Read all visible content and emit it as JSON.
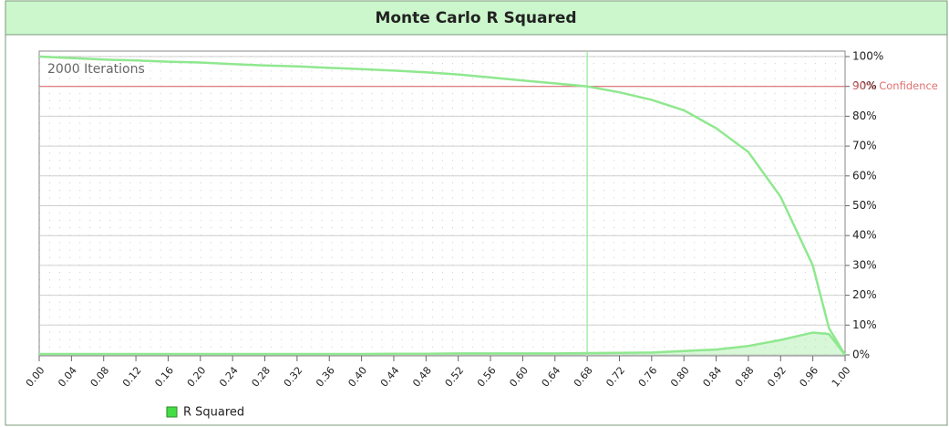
{
  "chart_data": {
    "type": "line",
    "title": "Monte Carlo R Squared",
    "annotation": "2000 Iterations",
    "x": [
      0,
      0.04,
      0.08,
      0.12,
      0.16,
      0.2,
      0.24,
      0.28,
      0.32,
      0.36,
      0.4,
      0.44,
      0.48,
      0.52,
      0.56,
      0.6,
      0.64,
      0.68,
      0.72,
      0.76,
      0.8,
      0.84,
      0.88,
      0.92,
      0.96,
      0.98,
      1.0
    ],
    "series": [
      {
        "color": "#8fe88f",
        "area": false,
        "values": [
          100,
          99.5,
          99,
          98.7,
          98.3,
          98,
          97.5,
          97,
          96.7,
          96.2,
          95.8,
          95.3,
          94.7,
          94,
          93,
          92,
          91,
          90,
          88,
          85.5,
          82,
          76,
          68,
          53,
          30,
          9,
          0
        ]
      },
      {
        "name": "R Squared",
        "color": "#8fe88f",
        "area": true,
        "values": [
          0.3,
          0.3,
          0.3,
          0.3,
          0.3,
          0.3,
          0.3,
          0.3,
          0.3,
          0.3,
          0.3,
          0.4,
          0.4,
          0.5,
          0.5,
          0.5,
          0.5,
          0.6,
          0.7,
          0.8,
          1.3,
          1.8,
          3,
          5,
          7.5,
          7,
          0
        ]
      }
    ],
    "xlim": [
      0,
      1
    ],
    "xticks": [
      {
        "value": 0,
        "label": "0.00"
      },
      {
        "value": 0.04,
        "label": "0.04"
      },
      {
        "value": 0.08,
        "label": "0.08"
      },
      {
        "value": 0.12,
        "label": "0.12"
      },
      {
        "value": 0.16,
        "label": "0.16"
      },
      {
        "value": 0.2,
        "label": "0.20"
      },
      {
        "value": 0.24,
        "label": "0.24"
      },
      {
        "value": 0.28,
        "label": "0.28"
      },
      {
        "value": 0.32,
        "label": "0.32"
      },
      {
        "value": 0.36,
        "label": "0.36"
      },
      {
        "value": 0.4,
        "label": "0.40"
      },
      {
        "value": 0.44,
        "label": "0.44"
      },
      {
        "value": 0.48,
        "label": "0.48"
      },
      {
        "value": 0.52,
        "label": "0.52"
      },
      {
        "value": 0.56,
        "label": "0.56"
      },
      {
        "value": 0.6,
        "label": "0.60"
      },
      {
        "value": 0.64,
        "label": "0.64"
      },
      {
        "value": 0.68,
        "label": "0.68"
      },
      {
        "value": 0.72,
        "label": "0.72"
      },
      {
        "value": 0.76,
        "label": "0.76"
      },
      {
        "value": 0.8,
        "label": "0.80"
      },
      {
        "value": 0.84,
        "label": "0.84"
      },
      {
        "value": 0.88,
        "label": "0.88"
      },
      {
        "value": 0.92,
        "label": "0.92"
      },
      {
        "value": 0.96,
        "label": "0.96"
      },
      {
        "value": 1.0,
        "label": "1.00"
      }
    ],
    "ylim": [
      0,
      100
    ],
    "yticks": [
      {
        "value": 0,
        "label": "0%"
      },
      {
        "value": 10,
        "label": "10%"
      },
      {
        "value": 20,
        "label": "20%"
      },
      {
        "value": 30,
        "label": "30%"
      },
      {
        "value": 40,
        "label": "40%"
      },
      {
        "value": 50,
        "label": "50%"
      },
      {
        "value": 60,
        "label": "60%"
      },
      {
        "value": 70,
        "label": "70%"
      },
      {
        "value": 80,
        "label": "80%"
      },
      {
        "value": 90,
        "label": "90%"
      },
      {
        "value": 100,
        "label": "100%"
      }
    ],
    "grid": true,
    "hline": {
      "value": 90,
      "label": "90% Confidence",
      "color": "#e07070"
    },
    "vline": {
      "value": 0.68,
      "color": "#a8eea8"
    }
  }
}
